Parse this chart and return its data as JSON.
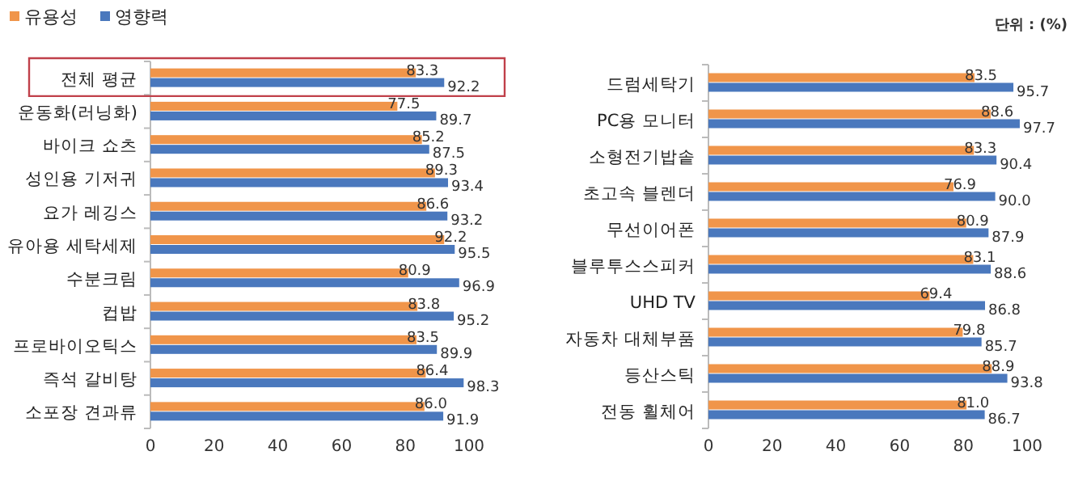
{
  "chart_data": [
    {
      "type": "bar",
      "orientation": "horizontal",
      "legend": "top left",
      "categories": [
        "전체 평균",
        "운동화(러닝화)",
        "바이크 쇼츠",
        "성인용 기저귀",
        "요가 레깅스",
        "유아용 세탁세제",
        "수분크림",
        "컵밥",
        "프로바이오틱스",
        "즉석 갈비탕",
        "소포장 견과류"
      ],
      "xlim": [
        0,
        100
      ],
      "xticks": [
        0,
        20,
        40,
        60,
        80,
        100
      ],
      "series": [
        {
          "name": "유용성",
          "color": "#f0954a",
          "values": [
            83.3,
            77.5,
            85.2,
            89.3,
            86.6,
            92.2,
            80.9,
            83.8,
            83.5,
            86.4,
            86.0
          ],
          "value_labels": [
            "83.3",
            "77.5",
            "85.2",
            "89.3",
            "86.6",
            "92.2",
            "80.9",
            "83.8",
            "83.5",
            "86.4",
            "86.0"
          ]
        },
        {
          "name": "영향력",
          "color": "#4a78bd",
          "values": [
            92.2,
            89.7,
            87.5,
            93.4,
            93.2,
            95.5,
            96.9,
            95.2,
            89.9,
            98.3,
            91.9
          ],
          "value_labels": [
            "92.2",
            "89.7",
            "87.5",
            "93.4",
            "93.2",
            "95.5",
            "96.9",
            "95.2",
            "89.9",
            "98.3",
            "91.9"
          ]
        }
      ]
    },
    {
      "type": "bar",
      "orientation": "horizontal",
      "annotations": [
        "단위 : (%)"
      ],
      "categories": [
        "드럼세탁기",
        "PC용 모니터",
        "소형전기밥솥",
        "초고속 블렌더",
        "무선이어폰",
        "블루투스스피커",
        "UHD TV",
        "자동차 대체부품",
        "등산스틱",
        "전동 휠체어"
      ],
      "xlim": [
        0,
        100
      ],
      "xticks": [
        0,
        20,
        40,
        60,
        80,
        100
      ],
      "series": [
        {
          "color": "#f0954a",
          "values": [
            83.5,
            88.6,
            83.3,
            76.9,
            80.9,
            83.1,
            69.4,
            79.8,
            88.9,
            81.0
          ],
          "value_labels": [
            "83.5",
            "88.6",
            "83.3",
            "76.9",
            "80.9",
            "83.1",
            "69.4",
            "79.8",
            "88.9",
            "81.0"
          ]
        },
        {
          "color": "#4a78bd",
          "values": [
            95.7,
            97.7,
            90.4,
            90.0,
            87.9,
            88.6,
            86.8,
            85.7,
            93.8,
            86.7
          ],
          "value_labels": [
            "95.7",
            "97.7",
            "90.4",
            "90.0",
            "87.9",
            "88.6",
            "86.8",
            "85.7",
            "93.8",
            "86.7"
          ]
        }
      ]
    }
  ]
}
